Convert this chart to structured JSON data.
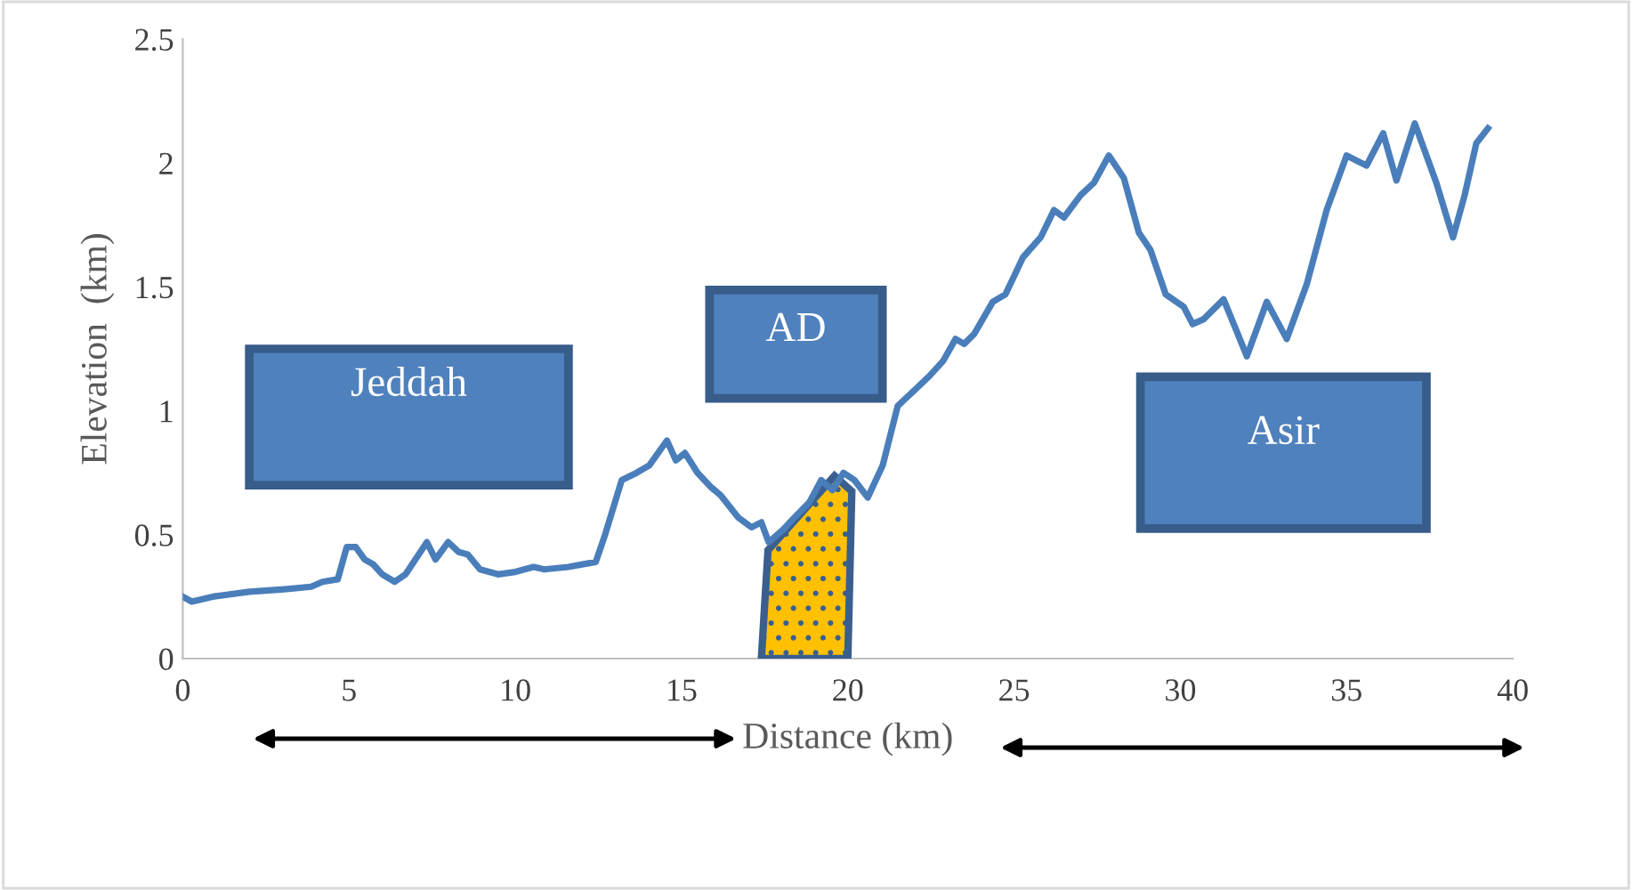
{
  "chart_data": {
    "type": "line",
    "xlabel": "Distance (km)",
    "ylabel": "Elevation  (km)",
    "xlim": [
      0,
      40
    ],
    "xticks": [
      0,
      5,
      10,
      15,
      20,
      25,
      30,
      35,
      40
    ],
    "ylim": [
      0,
      2.5
    ],
    "yticks": [
      0,
      0.5,
      1,
      1.5,
      2,
      2.5
    ],
    "grid": false,
    "marker": "none",
    "line_style": "solid",
    "annotations": [
      "Jeddah",
      "AD",
      "Asir"
    ],
    "series": [
      {
        "color": "#4a7ebb",
        "x": [
          0,
          0.27,
          0.9,
          2.0,
          3.05,
          3.86,
          4.2,
          4.66,
          4.93,
          5.2,
          5.47,
          5.73,
          6.0,
          6.37,
          6.7,
          7.34,
          7.6,
          7.98,
          8.3,
          8.57,
          8.94,
          9.48,
          10.0,
          10.55,
          10.87,
          11.6,
          12.42,
          12.7,
          13.2,
          13.65,
          14.03,
          14.56,
          14.83,
          15.1,
          15.48,
          15.9,
          16.17,
          16.7,
          17.1,
          17.4,
          17.62,
          18.05,
          18.4,
          18.84,
          19.2,
          19.54,
          19.87,
          20.2,
          20.6,
          21.05,
          21.5,
          21.9,
          22.45,
          22.86,
          23.24,
          23.5,
          23.8,
          24.36,
          24.74,
          25.27,
          25.8,
          26.2,
          26.5,
          27.0,
          27.4,
          27.85,
          28.3,
          28.75,
          29.1,
          29.56,
          30.1,
          30.37,
          30.7,
          31.3,
          31.7,
          32.0,
          32.6,
          33.2,
          33.8,
          34.4,
          35.0,
          35.6,
          36.1,
          36.5,
          37.05,
          37.7,
          37.97,
          38.2,
          38.55,
          38.9,
          39.25
        ],
        "values": [
          0.25,
          0.23,
          0.25,
          0.27,
          0.28,
          0.29,
          0.31,
          0.32,
          0.45,
          0.45,
          0.4,
          0.38,
          0.34,
          0.31,
          0.34,
          0.47,
          0.4,
          0.47,
          0.43,
          0.42,
          0.36,
          0.34,
          0.35,
          0.37,
          0.36,
          0.37,
          0.39,
          0.5,
          0.72,
          0.75,
          0.78,
          0.88,
          0.8,
          0.83,
          0.75,
          0.69,
          0.66,
          0.57,
          0.53,
          0.55,
          0.47,
          0.52,
          0.57,
          0.63,
          0.72,
          0.68,
          0.75,
          0.72,
          0.65,
          0.78,
          1.02,
          1.07,
          1.14,
          1.2,
          1.29,
          1.27,
          1.31,
          1.44,
          1.47,
          1.62,
          1.7,
          1.81,
          1.78,
          1.87,
          1.92,
          2.03,
          1.94,
          1.72,
          1.65,
          1.47,
          1.42,
          1.35,
          1.37,
          1.45,
          1.32,
          1.22,
          1.44,
          1.29,
          1.51,
          1.81,
          2.03,
          1.99,
          2.12,
          1.93,
          2.16,
          1.92,
          1.8,
          1.7,
          1.87,
          2.08,
          2.14
        ]
      }
    ]
  }
}
